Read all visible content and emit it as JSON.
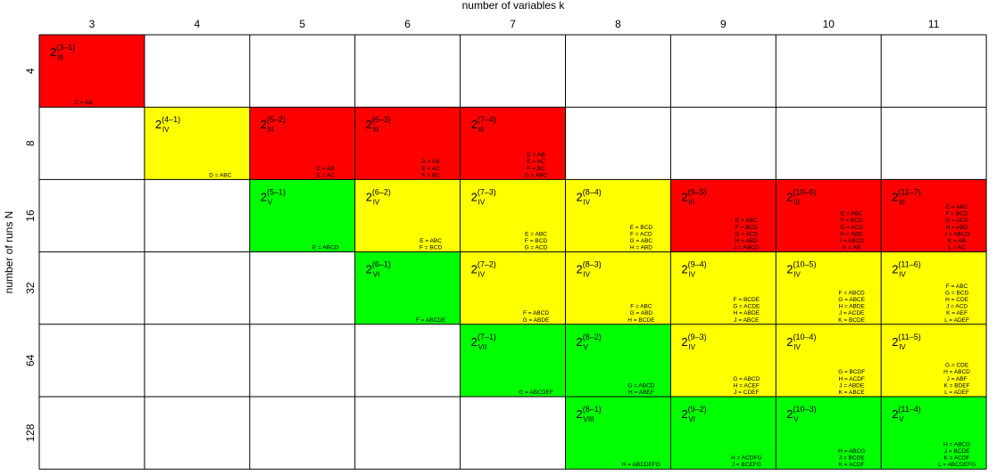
{
  "chart_data": {
    "type": "table",
    "xlabel": "number of variables k",
    "ylabel": "number of runs N",
    "x_ticks": [
      "3",
      "4",
      "5",
      "6",
      "7",
      "8",
      "9",
      "10",
      "11"
    ],
    "y_ticks": [
      "4",
      "8",
      "16",
      "32",
      "64",
      "128"
    ],
    "colors": {
      "red": "#ff0000",
      "yellow": "#ffff00",
      "green": "#00ff00",
      "grid": "#000000"
    },
    "cells": [
      {
        "k": "3",
        "N": "4",
        "base": "2",
        "exp": "(3–1)",
        "res": "III",
        "color": "red",
        "gens": [
          "C = AB"
        ]
      },
      {
        "k": "4",
        "N": "8",
        "base": "2",
        "exp": "(4–1)",
        "res": "IV",
        "color": "yellow",
        "gens": [
          "D = ABC"
        ]
      },
      {
        "k": "5",
        "N": "8",
        "base": "2",
        "exp": "(5–2)",
        "res": "III",
        "color": "red",
        "gens": [
          "D = AB",
          "E = AC"
        ]
      },
      {
        "k": "6",
        "N": "8",
        "base": "2",
        "exp": "(6–3)",
        "res": "III",
        "color": "red",
        "gens": [
          "D = AB",
          "E = AC",
          "F = BC"
        ]
      },
      {
        "k": "7",
        "N": "8",
        "base": "2",
        "exp": "(7–4)",
        "res": "III",
        "color": "red",
        "gens": [
          "D = AB",
          "E = AC",
          "F = BC",
          "G = ABC"
        ]
      },
      {
        "k": "5",
        "N": "16",
        "base": "2",
        "exp": "(5–1)",
        "res": "V",
        "color": "green",
        "gens": [
          "E = ABCD"
        ]
      },
      {
        "k": "6",
        "N": "16",
        "base": "2",
        "exp": "(6–2)",
        "res": "IV",
        "color": "yellow",
        "gens": [
          "E = ABC",
          "F = BCD"
        ]
      },
      {
        "k": "7",
        "N": "16",
        "base": "2",
        "exp": "(7–3)",
        "res": "IV",
        "color": "yellow",
        "gens": [
          "E = ABC",
          "F = BCD",
          "G = ACD"
        ]
      },
      {
        "k": "8",
        "N": "16",
        "base": "2",
        "exp": "(8–4)",
        "res": "IV",
        "color": "yellow",
        "gens": [
          "E = BCD",
          "F = ACD",
          "G = ABC",
          "H = ABD"
        ]
      },
      {
        "k": "9",
        "N": "16",
        "base": "2",
        "exp": "(9–5)",
        "res": "III",
        "color": "red",
        "gens": [
          "E = ABC",
          "F = BCD",
          "G = ACD",
          "H = ABD",
          "J = ABCD"
        ]
      },
      {
        "k": "10",
        "N": "16",
        "base": "2",
        "exp": "(10–6)",
        "res": "III",
        "color": "red",
        "gens": [
          "E = ABC",
          "F = BCD",
          "G = ACD",
          "H = ABD",
          "J = ABCD",
          "K = AB"
        ]
      },
      {
        "k": "11",
        "N": "16",
        "base": "2",
        "exp": "(11–7)",
        "res": "III",
        "color": "red",
        "gens": [
          "E = ABC",
          "F = BCD",
          "G = ACD",
          "H = ABD",
          "J = ABCD",
          "K = AB",
          "L = AC"
        ]
      },
      {
        "k": "6",
        "N": "32",
        "base": "2",
        "exp": "(6–1)",
        "res": "VI",
        "color": "green",
        "gens": [
          "F = ABCDE"
        ]
      },
      {
        "k": "7",
        "N": "32",
        "base": "2",
        "exp": "(7–2)",
        "res": "IV",
        "color": "yellow",
        "gens": [
          "F = ABCD",
          "G = ABDE"
        ]
      },
      {
        "k": "8",
        "N": "32",
        "base": "2",
        "exp": "(8–3)",
        "res": "IV",
        "color": "yellow",
        "gens": [
          "F = ABC",
          "G = ABD",
          "H = BCDE"
        ]
      },
      {
        "k": "9",
        "N": "32",
        "base": "2",
        "exp": "(9–4)",
        "res": "IV",
        "color": "yellow",
        "gens": [
          "F = BCDE",
          "G = ACDE",
          "H = ABDE",
          "J = ABCE"
        ]
      },
      {
        "k": "10",
        "N": "32",
        "base": "2",
        "exp": "(10–5)",
        "res": "IV",
        "color": "yellow",
        "gens": [
          "F = ABCD",
          "G = ABCE",
          "H = ABDE",
          "J = ACDE",
          "K = BCDE"
        ]
      },
      {
        "k": "11",
        "N": "32",
        "base": "2",
        "exp": "(11–6)",
        "res": "IV",
        "color": "yellow",
        "gens": [
          "F = ABC",
          "G = BCD",
          "H = CDE",
          "J = ACD",
          "K = AEF",
          "L = ADEF"
        ]
      },
      {
        "k": "7",
        "N": "64",
        "base": "2",
        "exp": "(7–1)",
        "res": "VII",
        "color": "green",
        "gens": [
          "G = ABCDEF"
        ]
      },
      {
        "k": "8",
        "N": "64",
        "base": "2",
        "exp": "(8–2)",
        "res": "V",
        "color": "green",
        "gens": [
          "G = ABCD",
          "H = ABEF"
        ]
      },
      {
        "k": "9",
        "N": "64",
        "base": "2",
        "exp": "(9–3)",
        "res": "IV",
        "color": "yellow",
        "gens": [
          "G = ABCD",
          "H = ACEF",
          "J = CDEF"
        ]
      },
      {
        "k": "10",
        "N": "64",
        "base": "2",
        "exp": "(10–4)",
        "res": "IV",
        "color": "yellow",
        "gens": [
          "G = BCDF",
          "H = ACDF",
          "J = ABDE",
          "K = ABCE"
        ]
      },
      {
        "k": "11",
        "N": "64",
        "base": "2",
        "exp": "(11–5)",
        "res": "IV",
        "color": "yellow",
        "gens": [
          "G = CDE",
          "H = ABCD",
          "J = ABF",
          "K = BDEF",
          "L = ADEF"
        ]
      },
      {
        "k": "8",
        "N": "128",
        "base": "2",
        "exp": "(8–1)",
        "res": "VIII",
        "color": "green",
        "gens": [
          "H = ABCDEFG"
        ]
      },
      {
        "k": "9",
        "N": "128",
        "base": "2",
        "exp": "(9–2)",
        "res": "VI",
        "color": "green",
        "gens": [
          "H = ACDFG",
          "J = BCEFG"
        ]
      },
      {
        "k": "10",
        "N": "128",
        "base": "2",
        "exp": "(10–3)",
        "res": "V",
        "color": "green",
        "gens": [
          "H = ABCG",
          "J = BCDE",
          "K = ACDF"
        ]
      },
      {
        "k": "11",
        "N": "128",
        "base": "2",
        "exp": "(11–4)",
        "res": "V",
        "color": "green",
        "gens": [
          "H = ABCG",
          "J = BCDE",
          "K = ACDF",
          "L = ABCDEFG"
        ]
      }
    ]
  }
}
